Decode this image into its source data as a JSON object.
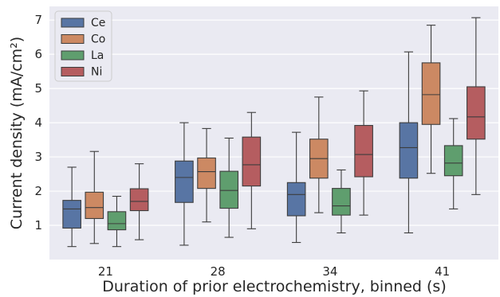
{
  "chart_data": {
    "type": "box",
    "xlabel": "Duration of prior electrochemistry, binned (s)",
    "ylabel": "Current density (mA/cm²)",
    "ylim": [
      0.0,
      7.4
    ],
    "yticks": [
      1,
      2,
      3,
      4,
      5,
      6,
      7
    ],
    "categories": [
      "21",
      "28",
      "34",
      "41"
    ],
    "grid": true,
    "legend_position": "top-left",
    "series": [
      {
        "name": "Ce",
        "color": "#5875a4",
        "boxes": [
          {
            "whislo": 0.38,
            "q1": 0.92,
            "med": 1.48,
            "q3": 1.73,
            "whishi": 2.7
          },
          {
            "whislo": 0.42,
            "q1": 1.67,
            "med": 2.4,
            "q3": 2.88,
            "whishi": 4.0
          },
          {
            "whislo": 0.5,
            "q1": 1.28,
            "med": 1.9,
            "q3": 2.25,
            "whishi": 3.72
          },
          {
            "whislo": 0.78,
            "q1": 2.38,
            "med": 3.27,
            "q3": 4.0,
            "whishi": 6.07
          }
        ]
      },
      {
        "name": "Co",
        "color": "#cc8963",
        "boxes": [
          {
            "whislo": 0.47,
            "q1": 1.2,
            "med": 1.52,
            "q3": 1.97,
            "whishi": 3.16
          },
          {
            "whislo": 1.1,
            "q1": 2.08,
            "med": 2.57,
            "q3": 2.97,
            "whishi": 3.83
          },
          {
            "whislo": 1.37,
            "q1": 2.38,
            "med": 2.95,
            "q3": 3.52,
            "whishi": 4.75
          },
          {
            "whislo": 2.52,
            "q1": 3.95,
            "med": 4.82,
            "q3": 5.75,
            "whishi": 6.85
          }
        ]
      },
      {
        "name": "La",
        "color": "#5f9e6e",
        "boxes": [
          {
            "whislo": 0.38,
            "q1": 0.87,
            "med": 1.05,
            "q3": 1.4,
            "whishi": 1.85
          },
          {
            "whislo": 0.65,
            "q1": 1.5,
            "med": 2.02,
            "q3": 2.58,
            "whishi": 3.55
          },
          {
            "whislo": 0.78,
            "q1": 1.3,
            "med": 1.57,
            "q3": 2.08,
            "whishi": 2.62
          },
          {
            "whislo": 1.48,
            "q1": 2.45,
            "med": 2.82,
            "q3": 3.33,
            "whishi": 4.12
          }
        ]
      },
      {
        "name": "Ni",
        "color": "#b55d60",
        "boxes": [
          {
            "whislo": 0.58,
            "q1": 1.43,
            "med": 1.7,
            "q3": 2.07,
            "whishi": 2.8
          },
          {
            "whislo": 0.9,
            "q1": 2.15,
            "med": 2.77,
            "q3": 3.58,
            "whishi": 4.3
          },
          {
            "whislo": 1.3,
            "q1": 2.42,
            "med": 3.07,
            "q3": 3.92,
            "whishi": 4.93
          },
          {
            "whislo": 1.9,
            "q1": 3.52,
            "med": 4.17,
            "q3": 5.05,
            "whishi": 7.07
          }
        ]
      }
    ]
  }
}
